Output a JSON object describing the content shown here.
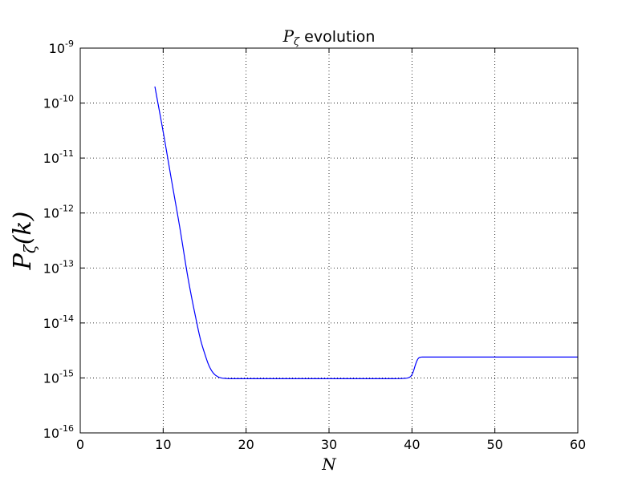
{
  "chart_data": {
    "type": "line",
    "title_math": "P",
    "title_math_sub": "ζ",
    "title_text": " evolution",
    "xlabel": "N",
    "ylabel_main": "P",
    "ylabel_sub": "ζ",
    "ylabel_arg": "(k)",
    "xlim": [
      0,
      60
    ],
    "ylim": [
      1e-16,
      1e-09
    ],
    "yscale": "log",
    "grid": true,
    "line_color": "#0000ff",
    "x_ticks": [
      0,
      10,
      20,
      30,
      40,
      50,
      60
    ],
    "y_ticks": [
      {
        "base": "10",
        "exp": "-9"
      },
      {
        "base": "10",
        "exp": "-10"
      },
      {
        "base": "10",
        "exp": "-11"
      },
      {
        "base": "10",
        "exp": "-12"
      },
      {
        "base": "10",
        "exp": "-13"
      },
      {
        "base": "10",
        "exp": "-14"
      },
      {
        "base": "10",
        "exp": "-15"
      },
      {
        "base": "10",
        "exp": "-16"
      }
    ],
    "series": [
      {
        "x": [
          9.0,
          10.0,
          11.0,
          12.0,
          13.0,
          14.0,
          14.5,
          15.0,
          15.5,
          16.0,
          16.5,
          17.0,
          17.5,
          18.0,
          19.0,
          20.0,
          25.0,
          30.0,
          35.0,
          38.0,
          39.0,
          39.5,
          39.8,
          40.0,
          40.2,
          40.4,
          40.6,
          40.8,
          41.0,
          41.5,
          42.0,
          50.0,
          60.0
        ],
        "y": [
          2e-10,
          3e-11,
          4e-12,
          5.5e-13,
          6.5e-14,
          1.1e-14,
          5e-15,
          2.8e-15,
          1.7e-15,
          1.25e-15,
          1.07e-15,
          1e-15,
          9.8e-16,
          9.7e-16,
          9.7e-16,
          9.7e-16,
          9.7e-16,
          9.7e-16,
          9.7e-16,
          9.7e-16,
          9.8e-16,
          1e-15,
          1.05e-15,
          1.15e-15,
          1.35e-15,
          1.7e-15,
          2.05e-15,
          2.3e-15,
          2.38e-15,
          2.4e-15,
          2.4e-15,
          2.4e-15,
          2.4e-15
        ]
      }
    ]
  }
}
